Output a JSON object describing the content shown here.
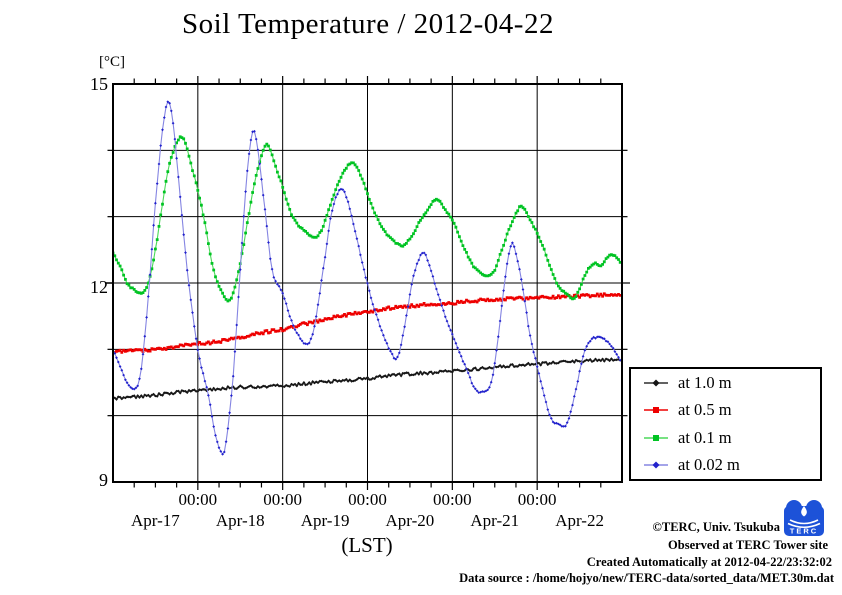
{
  "title": "Soil Temperature / 2012-04-22",
  "y_axis": {
    "unit_label": "[°C]",
    "tick_labels": [
      "15",
      "12",
      "9"
    ],
    "tick_values": [
      15,
      12,
      9
    ],
    "gridline_values": [
      14,
      13,
      12,
      11,
      10
    ],
    "range": [
      9,
      15
    ]
  },
  "x_axis": {
    "midnight_labels": [
      "00:00",
      "00:00",
      "00:00",
      "00:00",
      "00:00"
    ],
    "day_labels": [
      "Apr-17",
      "Apr-18",
      "Apr-19",
      "Apr-20",
      "Apr-21",
      "Apr-22"
    ],
    "caption": "(LST)"
  },
  "footer": {
    "lines": [
      "©TERC, Univ. Tsukuba",
      "Observed at TERC Tower site",
      "Created Automatically at 2012-04-22/23:32:02",
      "Data source : /home/hojyo/new/TERC-data/sorted_data/MET.30m.dat"
    ],
    "logo_text": "TERC",
    "logo_color": "#1d52d8"
  },
  "chart_data": {
    "type": "line",
    "title": "Soil Temperature / 2012-04-22",
    "xlabel": "(LST)",
    "ylabel": "[°C]",
    "ylim": [
      9,
      15
    ],
    "x_unit": "hours since 2012-04-17 00:00 LST",
    "x_range_hours": [
      0,
      144
    ],
    "grid": true,
    "legend_position": "outside-right-bottom",
    "sample_interval_hours": 0.5,
    "series": [
      {
        "name": "soil temperature at 1.0 m depth",
        "legend_label": "at 1.0 m",
        "marker_shape": "diamond",
        "marker_color": "#161616",
        "line_color": "#2e2e2e",
        "noise": 0.022,
        "points": [
          [
            0,
            10.26
          ],
          [
            6,
            10.28
          ],
          [
            12,
            10.31
          ],
          [
            18,
            10.35
          ],
          [
            24,
            10.38
          ],
          [
            30,
            10.41
          ],
          [
            36,
            10.43
          ],
          [
            42,
            10.44
          ],
          [
            48,
            10.45
          ],
          [
            54,
            10.48
          ],
          [
            60,
            10.51
          ],
          [
            66,
            10.53
          ],
          [
            72,
            10.56
          ],
          [
            78,
            10.6
          ],
          [
            84,
            10.63
          ],
          [
            90,
            10.65
          ],
          [
            96,
            10.67
          ],
          [
            102,
            10.7
          ],
          [
            108,
            10.73
          ],
          [
            114,
            10.76
          ],
          [
            120,
            10.78
          ],
          [
            126,
            10.8
          ],
          [
            132,
            10.82
          ],
          [
            138,
            10.84
          ],
          [
            143.5,
            10.85
          ]
        ]
      },
      {
        "name": "soil temperature at 0.5 m depth",
        "legend_label": "at 0.5 m",
        "marker_shape": "square",
        "marker_color": "#ee0000",
        "line_color": "#ee0000",
        "noise": 0.022,
        "points": [
          [
            0,
            10.97
          ],
          [
            6,
            10.98
          ],
          [
            12,
            11.0
          ],
          [
            18,
            11.04
          ],
          [
            24,
            11.08
          ],
          [
            30,
            11.12
          ],
          [
            36,
            11.18
          ],
          [
            42,
            11.25
          ],
          [
            48,
            11.3
          ],
          [
            54,
            11.38
          ],
          [
            60,
            11.45
          ],
          [
            66,
            11.52
          ],
          [
            72,
            11.57
          ],
          [
            78,
            11.62
          ],
          [
            84,
            11.65
          ],
          [
            90,
            11.68
          ],
          [
            96,
            11.7
          ],
          [
            102,
            11.73
          ],
          [
            108,
            11.75
          ],
          [
            114,
            11.77
          ],
          [
            120,
            11.78
          ],
          [
            126,
            11.79
          ],
          [
            132,
            11.8
          ],
          [
            138,
            11.82
          ],
          [
            143.5,
            11.83
          ]
        ]
      },
      {
        "name": "soil temperature at 0.1 m depth",
        "legend_label": "at 0.1 m",
        "marker_shape": "square",
        "marker_color": "#00c323",
        "line_color": "#4cd95a",
        "noise": 0.012,
        "points": [
          [
            0,
            12.45
          ],
          [
            2,
            12.25
          ],
          [
            4,
            12.0
          ],
          [
            6,
            11.9
          ],
          [
            8.2,
            11.85
          ],
          [
            10,
            12.0
          ],
          [
            12,
            12.5
          ],
          [
            14,
            13.2
          ],
          [
            16,
            13.8
          ],
          [
            19,
            14.2
          ],
          [
            20.5,
            14.1
          ],
          [
            22,
            13.8
          ],
          [
            24,
            13.4
          ],
          [
            26,
            12.9
          ],
          [
            28,
            12.3
          ],
          [
            30,
            11.95
          ],
          [
            32.6,
            11.73
          ],
          [
            34,
            11.85
          ],
          [
            36,
            12.3
          ],
          [
            38,
            12.9
          ],
          [
            40,
            13.5
          ],
          [
            43,
            14.07
          ],
          [
            44.5,
            14.0
          ],
          [
            46,
            13.75
          ],
          [
            48,
            13.45
          ],
          [
            50,
            13.1
          ],
          [
            52,
            12.9
          ],
          [
            55,
            12.75
          ],
          [
            57.2,
            12.68
          ],
          [
            59,
            12.8
          ],
          [
            61,
            13.1
          ],
          [
            63,
            13.4
          ],
          [
            65,
            13.65
          ],
          [
            67.5,
            13.82
          ],
          [
            69,
            13.75
          ],
          [
            71,
            13.5
          ],
          [
            73,
            13.2
          ],
          [
            75,
            12.95
          ],
          [
            78,
            12.7
          ],
          [
            81.7,
            12.56
          ],
          [
            83,
            12.6
          ],
          [
            85,
            12.75
          ],
          [
            87,
            12.95
          ],
          [
            89,
            13.1
          ],
          [
            91,
            13.25
          ],
          [
            92.5,
            13.22
          ],
          [
            94,
            13.1
          ],
          [
            96,
            12.95
          ],
          [
            98,
            12.7
          ],
          [
            100,
            12.45
          ],
          [
            102,
            12.25
          ],
          [
            104,
            12.15
          ],
          [
            106,
            12.1
          ],
          [
            108,
            12.2
          ],
          [
            110,
            12.5
          ],
          [
            112,
            12.8
          ],
          [
            115,
            13.14
          ],
          [
            116.5,
            13.1
          ],
          [
            118,
            12.95
          ],
          [
            120,
            12.75
          ],
          [
            122,
            12.5
          ],
          [
            124,
            12.2
          ],
          [
            126,
            11.95
          ],
          [
            128,
            11.85
          ],
          [
            130,
            11.77
          ],
          [
            131,
            11.8
          ],
          [
            133,
            12.05
          ],
          [
            135,
            12.25
          ],
          [
            136.5,
            12.3
          ],
          [
            138,
            12.25
          ],
          [
            140,
            12.4
          ],
          [
            141.5,
            12.42
          ],
          [
            143.5,
            12.32
          ]
        ]
      },
      {
        "name": "soil temperature at 0.02 m depth",
        "legend_label": "at 0.02 m",
        "marker_shape": "diamond",
        "marker_color": "#2222cc",
        "line_color": "#8585e2",
        "noise": 0.012,
        "points": [
          [
            0,
            11.0
          ],
          [
            2,
            10.75
          ],
          [
            4,
            10.5
          ],
          [
            6.3,
            10.4
          ],
          [
            8,
            10.7
          ],
          [
            10,
            11.8
          ],
          [
            12,
            13.2
          ],
          [
            14,
            14.3
          ],
          [
            15.6,
            14.73
          ],
          [
            17,
            14.4
          ],
          [
            19,
            13.3
          ],
          [
            21,
            12.2
          ],
          [
            24,
            11.0
          ],
          [
            27,
            10.3
          ],
          [
            29,
            9.7
          ],
          [
            31,
            9.42
          ],
          [
            32,
            9.6
          ],
          [
            34,
            10.6
          ],
          [
            36,
            12.2
          ],
          [
            38,
            13.7
          ],
          [
            39.7,
            14.3
          ],
          [
            41,
            14.0
          ],
          [
            43,
            13.1
          ],
          [
            45,
            12.2
          ],
          [
            48,
            11.85
          ],
          [
            50,
            11.5
          ],
          [
            52,
            11.25
          ],
          [
            55,
            11.08
          ],
          [
            57,
            11.35
          ],
          [
            60,
            12.4
          ],
          [
            62,
            13.1
          ],
          [
            64.5,
            13.42
          ],
          [
            66,
            13.3
          ],
          [
            68,
            12.9
          ],
          [
            71,
            12.2
          ],
          [
            74,
            11.6
          ],
          [
            77,
            11.15
          ],
          [
            79.8,
            10.86
          ],
          [
            81,
            10.95
          ],
          [
            83,
            11.5
          ],
          [
            85,
            12.1
          ],
          [
            87.5,
            12.45
          ],
          [
            89,
            12.35
          ],
          [
            91,
            12.0
          ],
          [
            94,
            11.5
          ],
          [
            97,
            11.1
          ],
          [
            100,
            10.7
          ],
          [
            102,
            10.45
          ],
          [
            104,
            10.35
          ],
          [
            107,
            10.5
          ],
          [
            109,
            11.2
          ],
          [
            111,
            12.1
          ],
          [
            112.8,
            12.6
          ],
          [
            114,
            12.45
          ],
          [
            116,
            11.9
          ],
          [
            118,
            11.2
          ],
          [
            120,
            10.75
          ],
          [
            122,
            10.3
          ],
          [
            124,
            9.95
          ],
          [
            126,
            9.87
          ],
          [
            127.9,
            9.85
          ],
          [
            129,
            9.95
          ],
          [
            131,
            10.4
          ],
          [
            133,
            10.9
          ],
          [
            135,
            11.13
          ],
          [
            137,
            11.18
          ],
          [
            139,
            11.15
          ],
          [
            141,
            11.05
          ],
          [
            143.5,
            10.85
          ]
        ]
      }
    ]
  }
}
